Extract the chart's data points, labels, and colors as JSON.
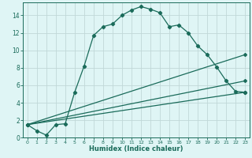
{
  "xlabel": "Humidex (Indice chaleur)",
  "ylabel": "",
  "background_color": "#dff5f5",
  "grid_color": "#c0d8d8",
  "line_color": "#1a6b5a",
  "xlim": [
    -0.5,
    23.5
  ],
  "ylim": [
    0,
    15.5
  ],
  "xticks": [
    0,
    1,
    2,
    3,
    4,
    5,
    6,
    7,
    8,
    9,
    10,
    11,
    12,
    13,
    14,
    15,
    16,
    17,
    18,
    19,
    20,
    21,
    22,
    23
  ],
  "yticks": [
    0,
    2,
    4,
    6,
    8,
    10,
    12,
    14
  ],
  "series": [
    {
      "x": [
        0,
        1,
        2,
        3,
        4,
        5,
        6,
        7,
        8,
        9,
        10,
        11,
        12,
        13,
        14,
        15,
        16,
        17,
        18,
        19,
        20,
        21,
        22,
        23
      ],
      "y": [
        1.5,
        0.8,
        0.3,
        1.5,
        1.6,
        5.2,
        8.2,
        11.7,
        12.7,
        13.0,
        14.0,
        14.6,
        15.0,
        14.7,
        14.3,
        12.7,
        12.9,
        12.0,
        10.5,
        9.5,
        8.1,
        6.5,
        5.3,
        5.2
      ]
    },
    {
      "x": [
        0,
        23
      ],
      "y": [
        1.5,
        9.5
      ]
    },
    {
      "x": [
        0,
        23
      ],
      "y": [
        1.5,
        6.5
      ]
    },
    {
      "x": [
        0,
        23
      ],
      "y": [
        1.5,
        5.2
      ]
    }
  ]
}
